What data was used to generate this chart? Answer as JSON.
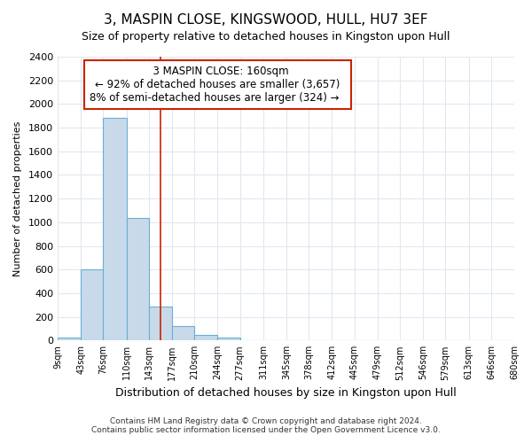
{
  "title": "3, MASPIN CLOSE, KINGSWOOD, HULL, HU7 3EF",
  "subtitle": "Size of property relative to detached houses in Kingston upon Hull",
  "xlabel": "Distribution of detached houses by size in Kingston upon Hull",
  "ylabel": "Number of detached properties",
  "bin_edges": [
    9,
    43,
    76,
    110,
    143,
    177,
    210,
    244,
    277,
    311,
    345,
    378,
    412,
    445,
    479,
    512,
    546,
    579,
    613,
    646,
    680
  ],
  "bar_heights": [
    25,
    600,
    1880,
    1040,
    290,
    120,
    50,
    25,
    0,
    0,
    0,
    0,
    0,
    0,
    0,
    0,
    0,
    0,
    0,
    0
  ],
  "bar_color": "#c8daea",
  "bar_edge_color": "#6aafd6",
  "property_size": 160,
  "property_line_color": "#cc2200",
  "ylim": [
    0,
    2400
  ],
  "yticks": [
    0,
    200,
    400,
    600,
    800,
    1000,
    1200,
    1400,
    1600,
    1800,
    2000,
    2200,
    2400
  ],
  "annotation_title": "3 MASPIN CLOSE: 160sqm",
  "annotation_line1": "← 92% of detached houses are smaller (3,657)",
  "annotation_line2": "8% of semi-detached houses are larger (324) →",
  "annotation_box_color": "#ffffff",
  "annotation_border_color": "#cc2200",
  "footer_line1": "Contains HM Land Registry data © Crown copyright and database right 2024.",
  "footer_line2": "Contains public sector information licensed under the Open Government Licence v3.0.",
  "background_color": "#ffffff",
  "grid_color": "#e0e8f0"
}
